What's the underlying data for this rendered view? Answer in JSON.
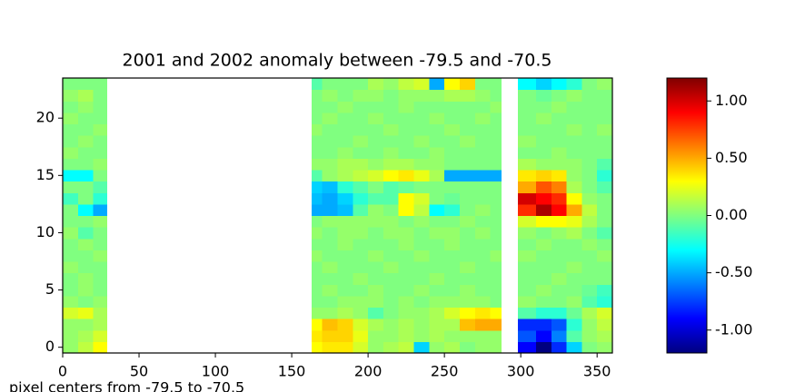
{
  "chart_data": {
    "type": "heatmap",
    "title": "2001 and 2002 anomaly between -79.5 and -70.5",
    "xlabel": "pixel centers from -79.5 to -70.5",
    "colormap": "jet",
    "xbins": [
      0,
      10,
      20,
      29,
      163,
      170,
      180,
      190,
      200,
      210,
      220,
      230,
      240,
      250,
      260,
      270,
      280,
      287,
      298,
      310,
      320,
      330,
      340,
      350,
      360
    ],
    "y": [
      0,
      1,
      2,
      3,
      4,
      5,
      6,
      7,
      8,
      9,
      10,
      11,
      12,
      13,
      14,
      15,
      16,
      17,
      18,
      19,
      20,
      21,
      22,
      23
    ],
    "values": [
      [
        0.05,
        0.15,
        0.3,
        null,
        0.3,
        0.35,
        0.35,
        0.2,
        0.05,
        0.1,
        0.15,
        -0.4,
        0.05,
        0.1,
        0,
        0.05,
        0.05,
        null,
        -0.9,
        -1.2,
        -0.8,
        -0.4,
        0,
        0.05
      ],
      [
        0.05,
        0.1,
        0.2,
        null,
        0.35,
        0.4,
        0.4,
        0.25,
        0.05,
        0.05,
        0.1,
        0.05,
        0.1,
        0.05,
        0.05,
        0.05,
        0.05,
        null,
        -0.7,
        -0.9,
        -0.6,
        -0.1,
        0.05,
        0.1
      ],
      [
        0.05,
        0.05,
        0.1,
        null,
        0.3,
        0.45,
        0.4,
        0.2,
        0.1,
        0.05,
        0.1,
        0.05,
        0.1,
        0.1,
        0.45,
        0.5,
        0.5,
        null,
        -0.8,
        -0.8,
        -0.7,
        -0.2,
        0.05,
        0.15
      ],
      [
        0.2,
        0.25,
        0.1,
        null,
        0.05,
        0.05,
        0.1,
        0.05,
        -0.1,
        0,
        0.05,
        0.05,
        0.1,
        0.2,
        0.3,
        0.35,
        0.3,
        null,
        -0.1,
        -0.2,
        -0.2,
        -0.05,
        0.1,
        0.2
      ],
      [
        0.05,
        0,
        0.05,
        null,
        0,
        0,
        0.05,
        0.05,
        0.05,
        0,
        0.05,
        0,
        0.05,
        0.05,
        0.05,
        0.05,
        0,
        null,
        0.05,
        0,
        0,
        0.05,
        -0.1,
        -0.2
      ],
      [
        0,
        0.05,
        0,
        null,
        0,
        0.05,
        0,
        0,
        0.05,
        0,
        0,
        0.05,
        0,
        0,
        0.05,
        0,
        0,
        null,
        0,
        0.05,
        0,
        0,
        -0.05,
        -0.15
      ],
      [
        0,
        0.05,
        0,
        null,
        0,
        0,
        0,
        0.05,
        0,
        0,
        0,
        0,
        0.05,
        0,
        0,
        0,
        0,
        null,
        0,
        0,
        0.05,
        0,
        0,
        0
      ],
      [
        0.05,
        0,
        0,
        null,
        0,
        0.05,
        0,
        0,
        0,
        0.05,
        0,
        0,
        0,
        0,
        0.05,
        0,
        0,
        null,
        0,
        0,
        0,
        0.05,
        0,
        0
      ],
      [
        0,
        0,
        0.05,
        null,
        0.05,
        0,
        0,
        0,
        0.05,
        0,
        0,
        0.05,
        0,
        0,
        0,
        0,
        0.05,
        null,
        0.05,
        0,
        0,
        0,
        0,
        0.05
      ],
      [
        0,
        0.05,
        0,
        null,
        0,
        0,
        0.05,
        0,
        0,
        0,
        0.05,
        0,
        0,
        0.05,
        0,
        0,
        0,
        null,
        0,
        0.05,
        0,
        0,
        0.05,
        0
      ],
      [
        0.05,
        -0.1,
        0,
        null,
        0.05,
        0,
        0.05,
        0.05,
        0,
        0.05,
        0.05,
        0,
        0.05,
        0.05,
        0,
        0.05,
        0,
        null,
        0.05,
        0,
        0.05,
        0.1,
        0,
        -0.1
      ],
      [
        0,
        0,
        0.05,
        null,
        0,
        0.05,
        0.05,
        0.05,
        0.05,
        0.05,
        0,
        0.05,
        0,
        0,
        0.05,
        0,
        0,
        null,
        0.2,
        0.3,
        0.3,
        0.25,
        0.1,
        0
      ],
      [
        0,
        -0.3,
        -0.5,
        null,
        -0.5,
        -0.5,
        -0.45,
        -0.1,
        0.05,
        0,
        0.3,
        0.15,
        -0.3,
        -0.2,
        0,
        0.05,
        0,
        null,
        0.8,
        1.1,
        0.9,
        0.5,
        0.15,
        0
      ],
      [
        -0.15,
        0,
        -0.2,
        null,
        -0.45,
        -0.5,
        -0.4,
        -0.2,
        -0.1,
        -0.1,
        0.3,
        0.2,
        0,
        -0.05,
        0,
        0,
        0,
        null,
        1.0,
        0.9,
        0.8,
        0.3,
        0.05,
        0
      ],
      [
        0,
        0,
        -0.1,
        null,
        -0.4,
        -0.45,
        -0.2,
        -0.1,
        0,
        -0.1,
        -0.05,
        0,
        0,
        0,
        0,
        0,
        0,
        null,
        0.5,
        0.7,
        0.6,
        0.1,
        0,
        -0.1
      ],
      [
        -0.3,
        -0.3,
        0,
        null,
        -0.1,
        0.05,
        0.1,
        0.15,
        0.2,
        0.3,
        0.35,
        0.25,
        0.1,
        -0.5,
        -0.5,
        -0.5,
        -0.5,
        null,
        0.35,
        0.4,
        0.35,
        0.05,
        0,
        -0.2
      ],
      [
        0,
        0,
        0.05,
        null,
        0.05,
        0.05,
        0.1,
        0.1,
        0.05,
        0.1,
        0.1,
        0.05,
        0.05,
        0,
        0,
        0,
        0,
        null,
        0.1,
        0.05,
        0.05,
        0.05,
        0,
        -0.1
      ],
      [
        0.05,
        0,
        0,
        null,
        0,
        0,
        0.05,
        0,
        0,
        0.05,
        0,
        0,
        0.05,
        0,
        0,
        0,
        0,
        null,
        0,
        0,
        0.05,
        0,
        0,
        0
      ],
      [
        0,
        0.05,
        0,
        null,
        0,
        0,
        0,
        0.05,
        0,
        0,
        0,
        0.05,
        0,
        0,
        0.05,
        0,
        0,
        null,
        0.05,
        0,
        0,
        0,
        0,
        0
      ],
      [
        0,
        0,
        0.05,
        null,
        0.05,
        0,
        0,
        0,
        0,
        0.05,
        0,
        0,
        0,
        0.05,
        0,
        0,
        0,
        null,
        0,
        0,
        0,
        0.05,
        0,
        0.05
      ],
      [
        0.05,
        0,
        0,
        null,
        0,
        0.05,
        0,
        0,
        0.05,
        0,
        0,
        0,
        0.05,
        0,
        0,
        0.05,
        0,
        null,
        0,
        0.05,
        0,
        0,
        0,
        0
      ],
      [
        0,
        0.05,
        0,
        null,
        0,
        0,
        0.05,
        0,
        0,
        0,
        0.05,
        0,
        0,
        0,
        0,
        0,
        0.05,
        null,
        0,
        0,
        0.05,
        0,
        0,
        0
      ],
      [
        0.05,
        0.1,
        0,
        null,
        0,
        0.05,
        0,
        0.05,
        0.05,
        0,
        0.05,
        0.05,
        0.05,
        0.1,
        0.1,
        0.05,
        0,
        null,
        0,
        -0.05,
        0,
        0.05,
        0,
        0
      ],
      [
        0,
        0,
        0,
        null,
        -0.1,
        0,
        0,
        0,
        0.1,
        0.05,
        0.15,
        0.2,
        -0.5,
        0.3,
        0.4,
        0,
        0,
        null,
        -0.3,
        -0.4,
        -0.3,
        -0.2,
        0,
        0.05
      ]
    ],
    "xlim": [
      0,
      360
    ],
    "ylim": [
      -0.5,
      23.5
    ],
    "xticks": [
      0,
      50,
      100,
      150,
      200,
      250,
      300,
      350
    ],
    "yticks": [
      0,
      5,
      10,
      15,
      20
    ],
    "clim": [
      -1.2,
      1.2
    ],
    "cticks": [
      {
        "value": -1,
        "label": "-1.00"
      },
      {
        "value": -0.5,
        "label": "-0.50"
      },
      {
        "value": 0,
        "label": "0.00"
      },
      {
        "value": 0.5,
        "label": "0.50"
      },
      {
        "value": 1,
        "label": "1.00"
      }
    ]
  }
}
